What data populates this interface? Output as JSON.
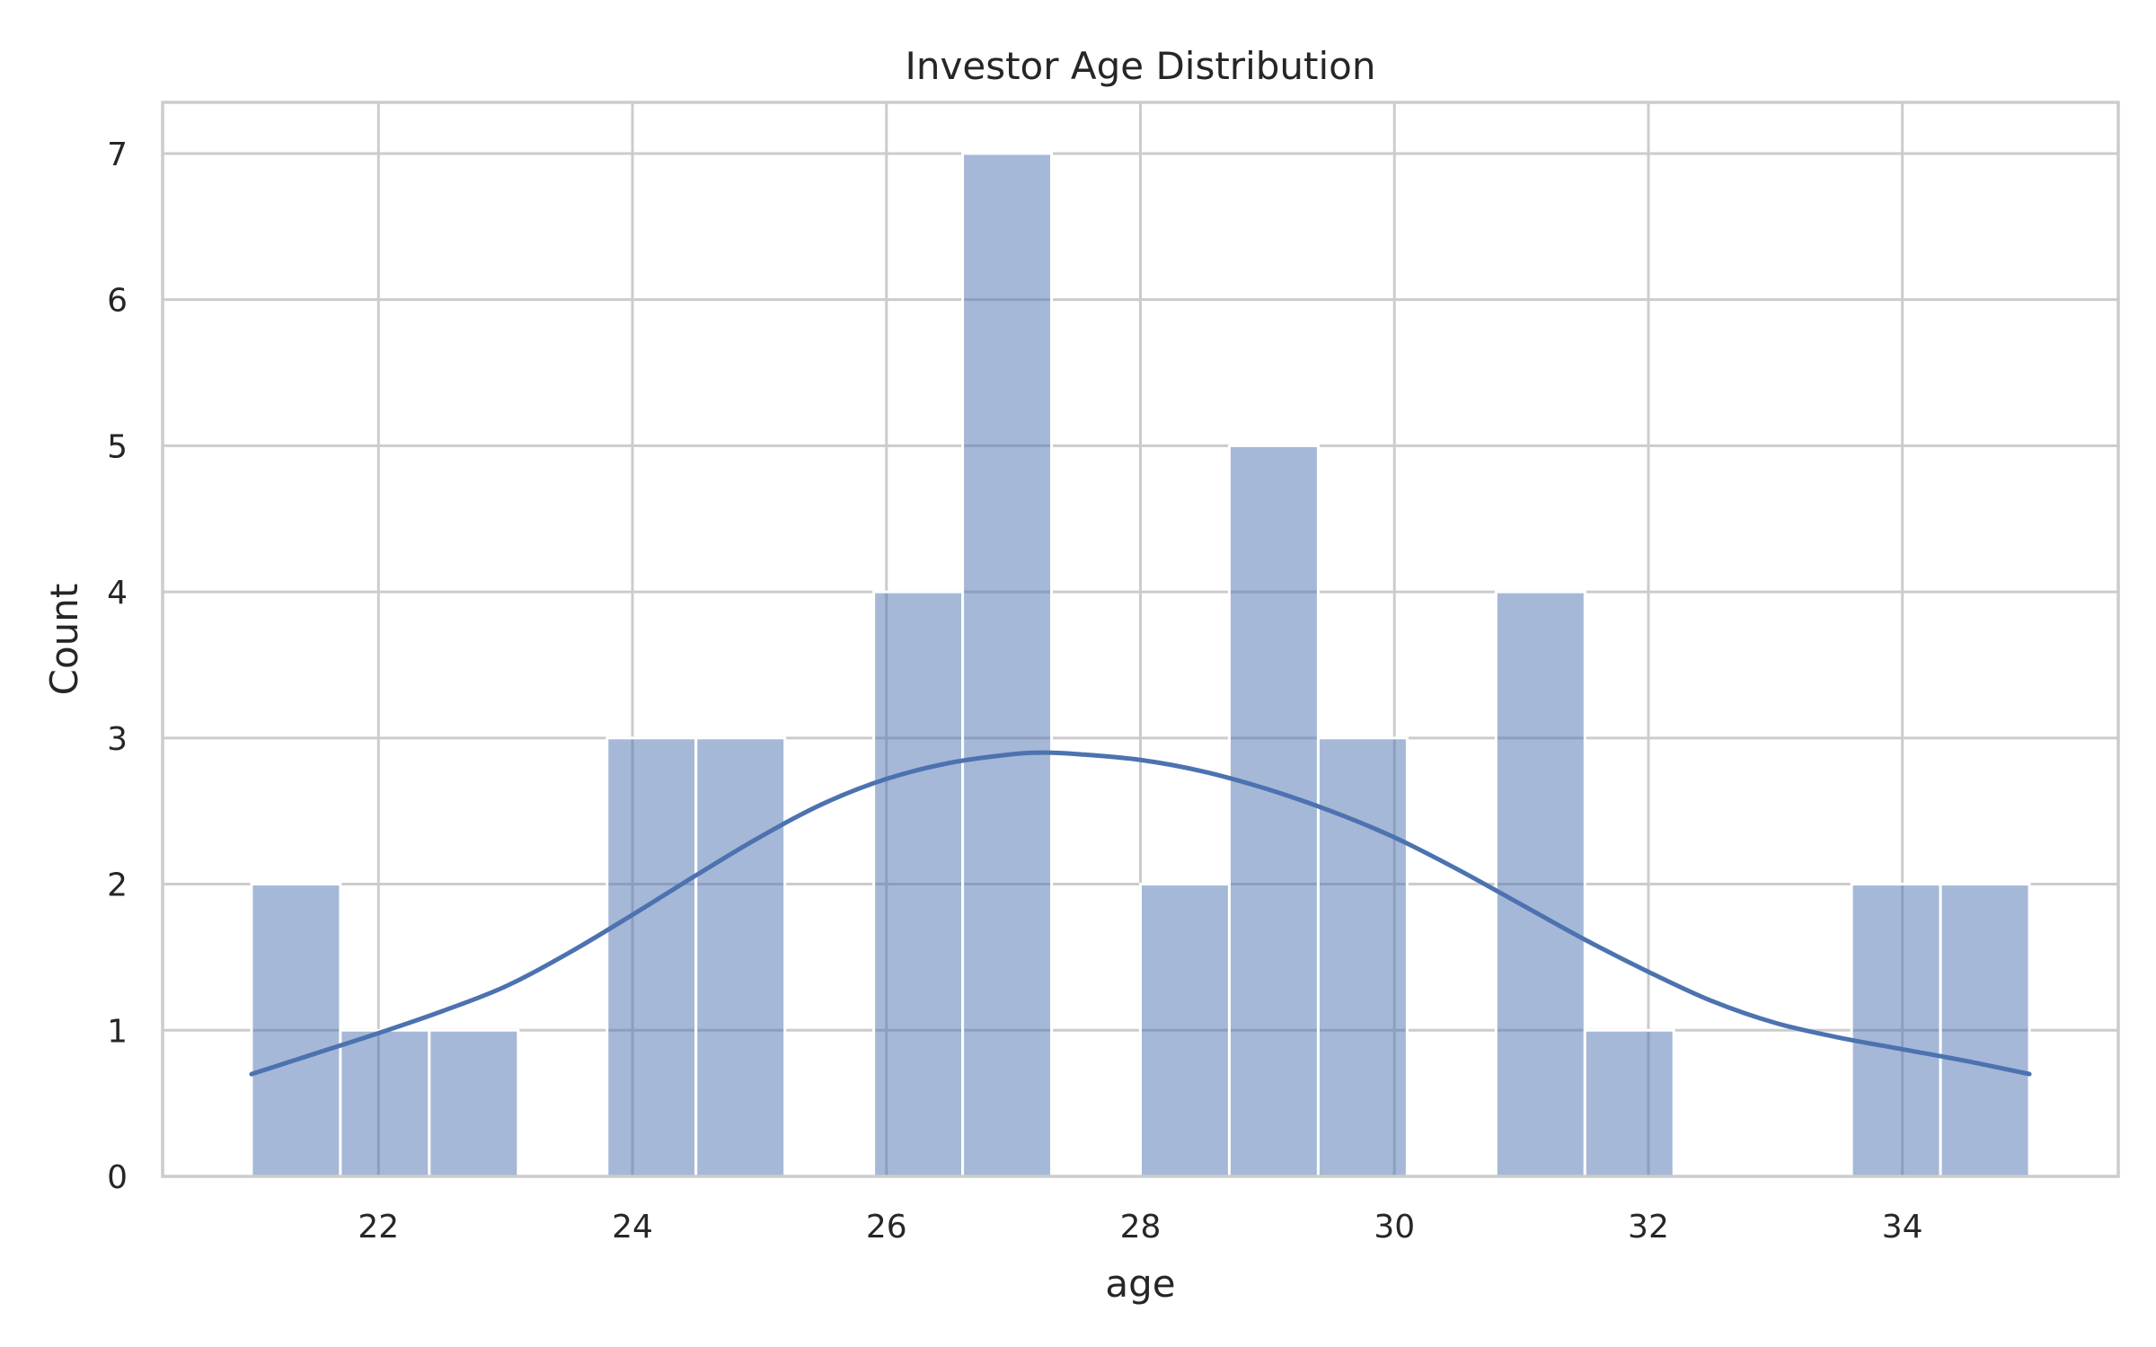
{
  "chart_data": {
    "type": "bar",
    "title": "Investor Age Distribution",
    "xlabel": "age",
    "ylabel": "Count",
    "xlim": [
      20.3,
      35.7
    ],
    "ylim": [
      0,
      7.35
    ],
    "xticks": [
      22,
      24,
      26,
      28,
      30,
      32,
      34
    ],
    "yticks": [
      0,
      1,
      2,
      3,
      4,
      5,
      6,
      7
    ],
    "grid": true,
    "bins": [
      {
        "x0": 21.0,
        "x1": 21.7,
        "count": 2
      },
      {
        "x0": 21.7,
        "x1": 22.4,
        "count": 1
      },
      {
        "x0": 22.4,
        "x1": 23.1,
        "count": 1
      },
      {
        "x0": 23.1,
        "x1": 23.8,
        "count": 0
      },
      {
        "x0": 23.8,
        "x1": 24.5,
        "count": 3
      },
      {
        "x0": 24.5,
        "x1": 25.2,
        "count": 3
      },
      {
        "x0": 25.2,
        "x1": 25.9,
        "count": 0
      },
      {
        "x0": 25.9,
        "x1": 26.6,
        "count": 4
      },
      {
        "x0": 26.6,
        "x1": 27.3,
        "count": 7
      },
      {
        "x0": 27.3,
        "x1": 28.0,
        "count": 0
      },
      {
        "x0": 28.0,
        "x1": 28.7,
        "count": 2
      },
      {
        "x0": 28.7,
        "x1": 29.4,
        "count": 5
      },
      {
        "x0": 29.4,
        "x1": 30.1,
        "count": 3
      },
      {
        "x0": 30.1,
        "x1": 30.8,
        "count": 0
      },
      {
        "x0": 30.8,
        "x1": 31.5,
        "count": 4
      },
      {
        "x0": 31.5,
        "x1": 32.2,
        "count": 1
      },
      {
        "x0": 32.2,
        "x1": 32.9,
        "count": 0
      },
      {
        "x0": 32.9,
        "x1": 33.6,
        "count": 0
      },
      {
        "x0": 33.6,
        "x1": 34.3,
        "count": 2
      },
      {
        "x0": 34.3,
        "x1": 35.0,
        "count": 2
      }
    ],
    "kde": {
      "x": [
        21.0,
        21.5,
        22.0,
        22.5,
        23.0,
        23.5,
        24.0,
        24.5,
        25.0,
        25.5,
        26.0,
        26.5,
        27.0,
        27.25,
        27.5,
        28.0,
        28.5,
        29.0,
        29.5,
        30.0,
        30.5,
        31.0,
        31.5,
        32.0,
        32.5,
        33.0,
        33.5,
        34.0,
        34.5,
        35.0
      ],
      "y": [
        0.7,
        0.84,
        0.98,
        1.13,
        1.3,
        1.53,
        1.79,
        2.06,
        2.32,
        2.55,
        2.72,
        2.83,
        2.89,
        2.9,
        2.89,
        2.85,
        2.77,
        2.65,
        2.5,
        2.32,
        2.1,
        1.86,
        1.62,
        1.4,
        1.2,
        1.05,
        0.95,
        0.87,
        0.79,
        0.7
      ]
    },
    "colors": {
      "bar_fill": "#4c72b0",
      "bar_opacity": 0.5,
      "bar_edge": "#ffffff",
      "line": "#4c72b0",
      "grid": "#cccccc",
      "spine": "#cccccc",
      "text": "#262626"
    }
  }
}
